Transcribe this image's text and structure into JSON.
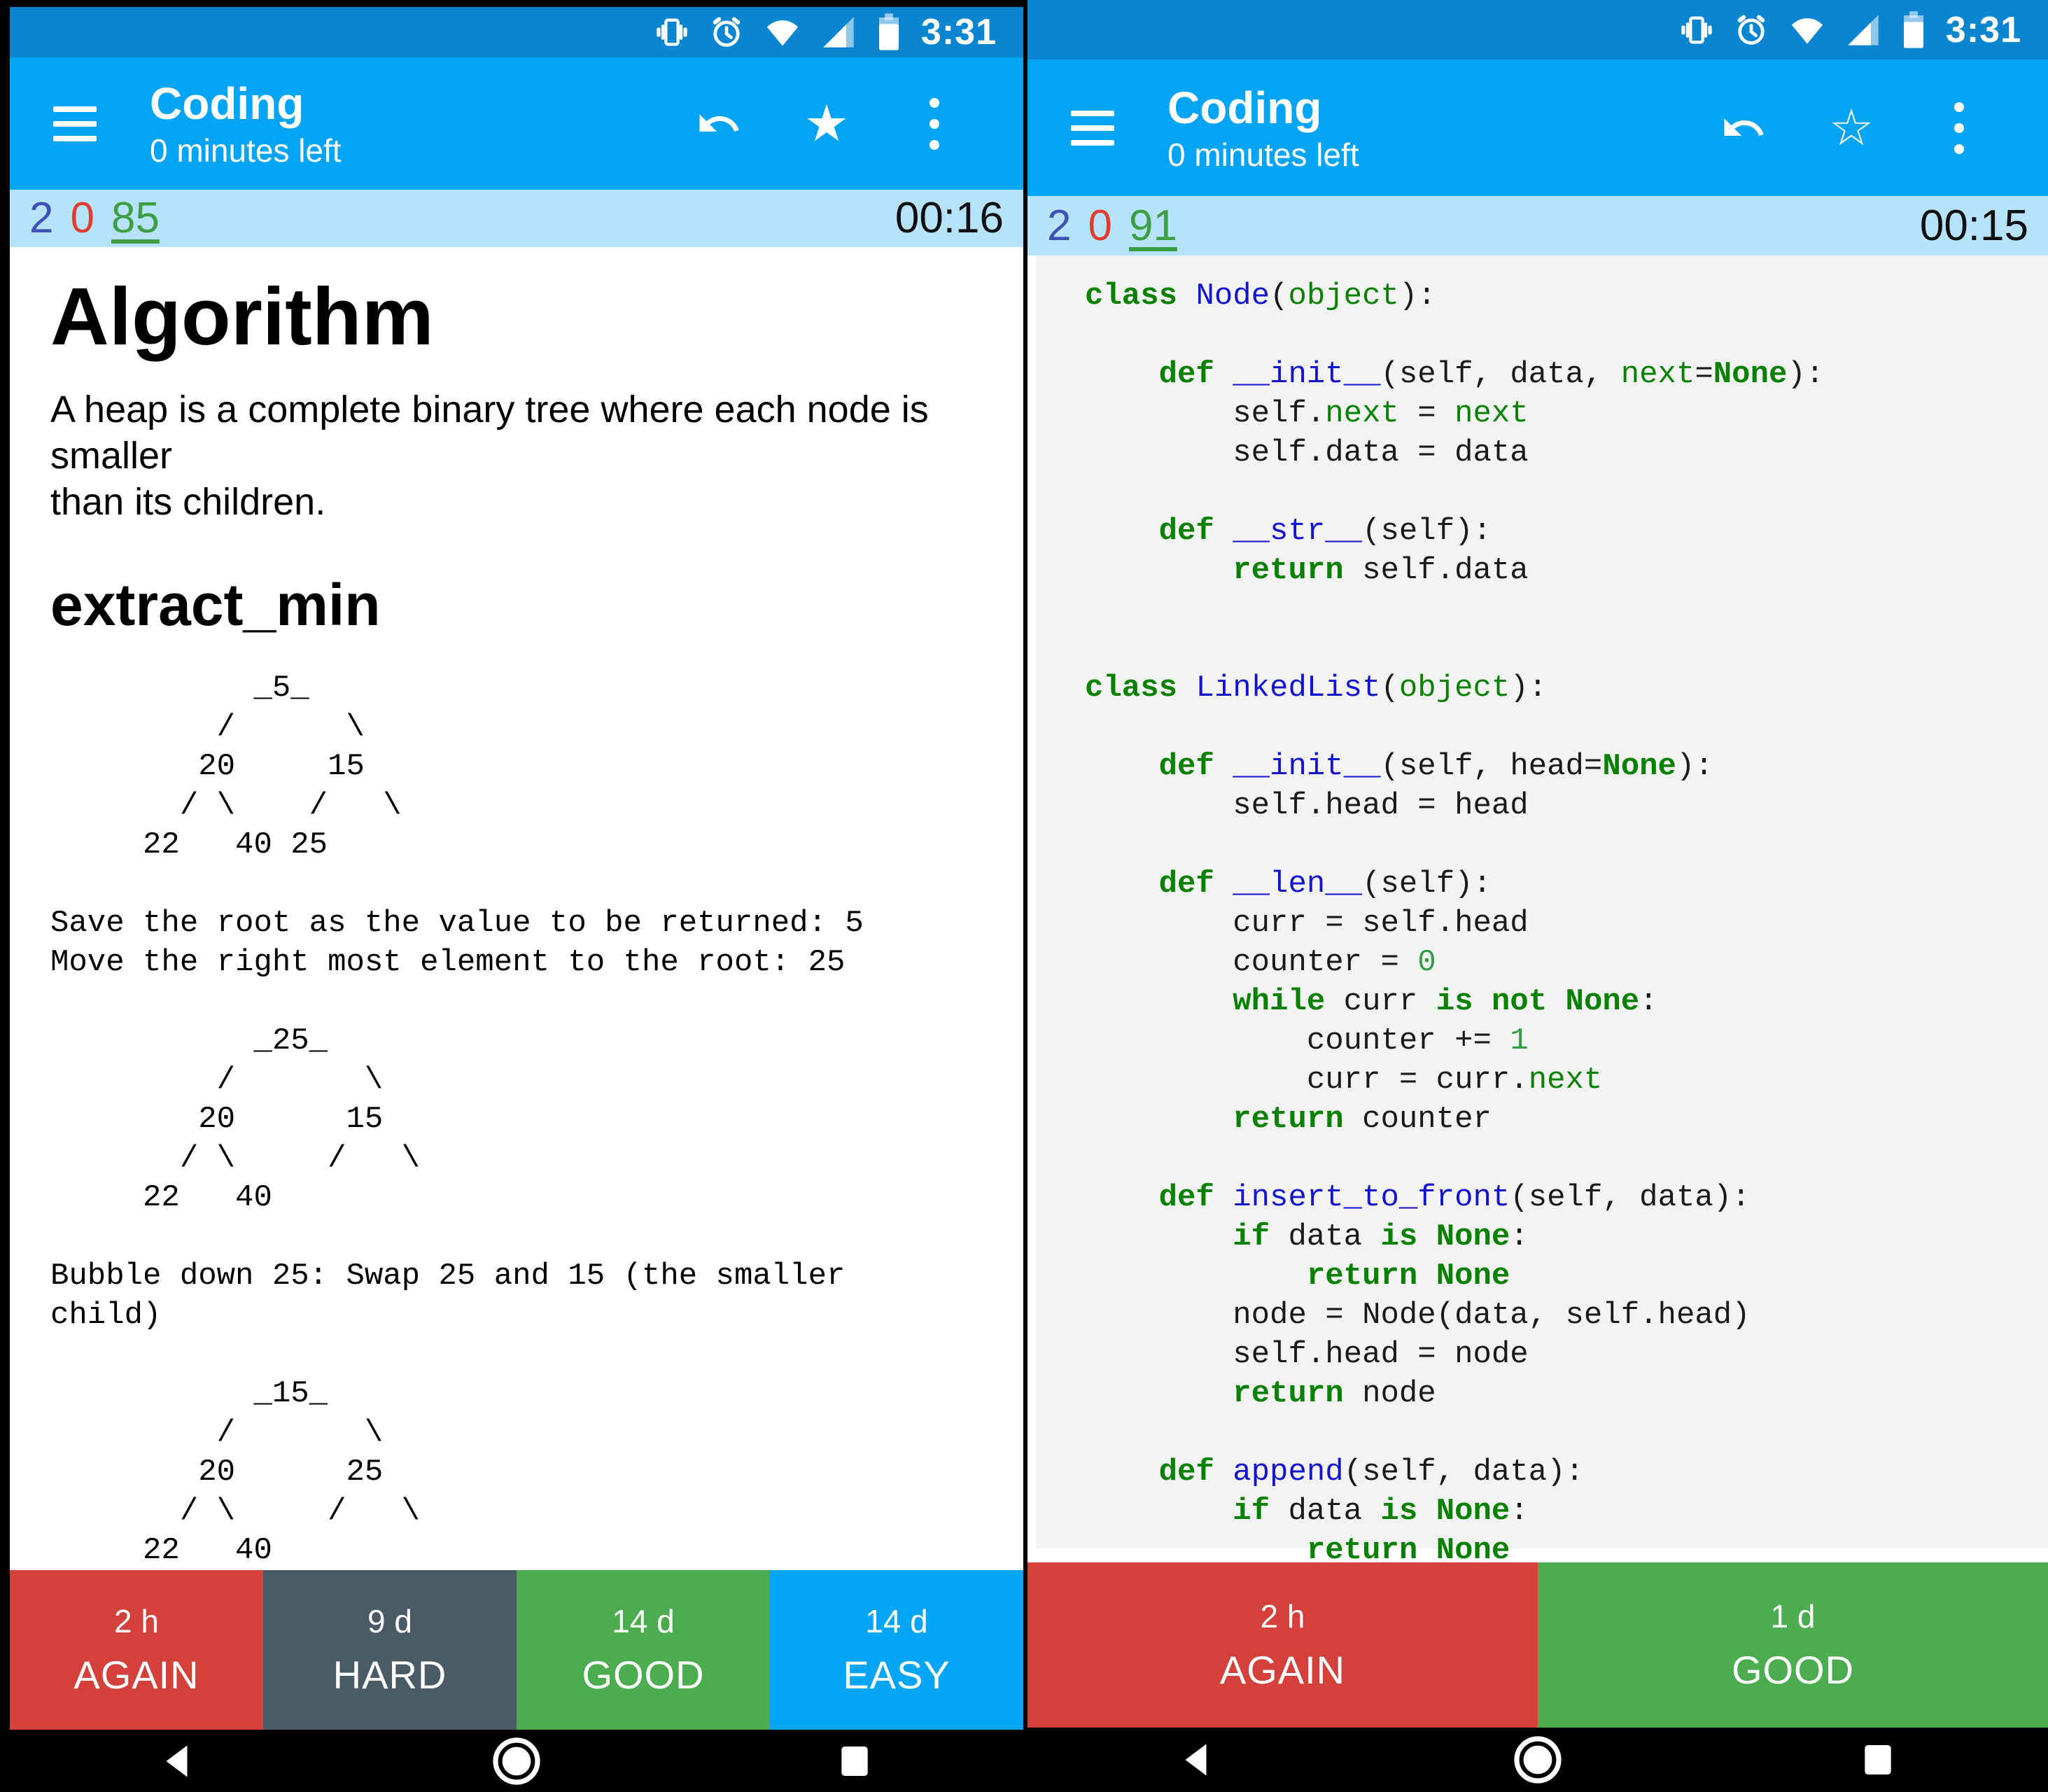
{
  "status_bar": {
    "time": "3:31",
    "icons": [
      "vibrate-icon",
      "alarm-icon",
      "wifi-icon",
      "signal-icon",
      "battery-icon"
    ]
  },
  "app_bar": {
    "title": "Coding",
    "subtitle": "0 minutes left",
    "star_filled": "★",
    "star_outline": "☆"
  },
  "left_phone": {
    "counter_bar": {
      "new_count": "2",
      "learning_count": "0",
      "review_count": "85",
      "timer": "00:16"
    },
    "card": {
      "heading": "Algorithm",
      "intro": "A heap is a complete binary tree where each node is smaller\nthan its children.",
      "subheading": "extract_min",
      "tree_initial": "           _5_\n         /      \\\n        20     15\n       / \\    /   \\\n     22   40 25",
      "step_1": "Save the root as the value to be returned: 5\nMove the right most element to the root: 25",
      "tree_after_move": "           _25_\n         /       \\\n        20      15\n       / \\     /   \\\n     22   40",
      "step_2": "Bubble down 25: Swap 25 and 15 (the smaller\nchild)",
      "tree_after_bubble": "           _15_\n         /       \\\n        20      25\n       / \\     /   \\\n     22   40"
    },
    "answer_buttons": [
      {
        "interval": "2 h",
        "label": "AGAIN",
        "color": "#d4403a"
      },
      {
        "interval": "9 d",
        "label": "HARD",
        "color": "#4b5b66"
      },
      {
        "interval": "14 d",
        "label": "GOOD",
        "color": "#4bad50"
      },
      {
        "interval": "14 d",
        "label": "EASY",
        "color": "#04a5f4"
      }
    ]
  },
  "right_phone": {
    "counter_bar": {
      "new_count": "2",
      "learning_count": "0",
      "review_count": "91",
      "timer": "00:15"
    },
    "answer_buttons": [
      {
        "interval": "2 h",
        "label": "AGAIN",
        "color": "#d4403a"
      },
      {
        "interval": "1 d",
        "label": "GOOD",
        "color": "#4bad50"
      }
    ],
    "code_lines": [
      [
        [
          "k",
          "class"
        ],
        [
          "p",
          " "
        ],
        [
          "n",
          "Node"
        ],
        [
          "p",
          "("
        ],
        [
          "b",
          "object"
        ],
        [
          "p",
          "):"
        ]
      ],
      [],
      [
        [
          "p",
          "    "
        ],
        [
          "k",
          "def"
        ],
        [
          "p",
          " "
        ],
        [
          "n",
          "__init__"
        ],
        [
          "p",
          "(self, data, "
        ],
        [
          "b",
          "next"
        ],
        [
          "p",
          "="
        ],
        [
          "k",
          "None"
        ],
        [
          "p",
          "):"
        ]
      ],
      [
        [
          "p",
          "        self."
        ],
        [
          "b",
          "next"
        ],
        [
          "p",
          " = "
        ],
        [
          "b",
          "next"
        ]
      ],
      [
        [
          "p",
          "        self.data = data"
        ]
      ],
      [],
      [
        [
          "p",
          "    "
        ],
        [
          "k",
          "def"
        ],
        [
          "p",
          " "
        ],
        [
          "n",
          "__str__"
        ],
        [
          "p",
          "(self):"
        ]
      ],
      [
        [
          "p",
          "        "
        ],
        [
          "k",
          "return"
        ],
        [
          "p",
          " self.data"
        ]
      ],
      [],
      [],
      [
        [
          "k",
          "class"
        ],
        [
          "p",
          " "
        ],
        [
          "n",
          "LinkedList"
        ],
        [
          "p",
          "("
        ],
        [
          "b",
          "object"
        ],
        [
          "p",
          "):"
        ]
      ],
      [],
      [
        [
          "p",
          "    "
        ],
        [
          "k",
          "def"
        ],
        [
          "p",
          " "
        ],
        [
          "n",
          "__init__"
        ],
        [
          "p",
          "(self, head="
        ],
        [
          "k",
          "None"
        ],
        [
          "p",
          "):"
        ]
      ],
      [
        [
          "p",
          "        self.head = head"
        ]
      ],
      [],
      [
        [
          "p",
          "    "
        ],
        [
          "k",
          "def"
        ],
        [
          "p",
          " "
        ],
        [
          "n",
          "__len__"
        ],
        [
          "p",
          "(self):"
        ]
      ],
      [
        [
          "p",
          "        curr = self.head"
        ]
      ],
      [
        [
          "p",
          "        counter = "
        ],
        [
          "m",
          "0"
        ]
      ],
      [
        [
          "p",
          "        "
        ],
        [
          "k",
          "while"
        ],
        [
          "p",
          " curr "
        ],
        [
          "k",
          "is"
        ],
        [
          "p",
          " "
        ],
        [
          "k",
          "not"
        ],
        [
          "p",
          " "
        ],
        [
          "k",
          "None"
        ],
        [
          "p",
          ":"
        ]
      ],
      [
        [
          "p",
          "            counter += "
        ],
        [
          "m",
          "1"
        ]
      ],
      [
        [
          "p",
          "            curr = curr."
        ],
        [
          "b",
          "next"
        ]
      ],
      [
        [
          "p",
          "        "
        ],
        [
          "k",
          "return"
        ],
        [
          "p",
          " counter"
        ]
      ],
      [],
      [
        [
          "p",
          "    "
        ],
        [
          "k",
          "def"
        ],
        [
          "p",
          " "
        ],
        [
          "n",
          "insert_to_front"
        ],
        [
          "p",
          "(self, data):"
        ]
      ],
      [
        [
          "p",
          "        "
        ],
        [
          "k",
          "if"
        ],
        [
          "p",
          " data "
        ],
        [
          "k",
          "is"
        ],
        [
          "p",
          " "
        ],
        [
          "k",
          "None"
        ],
        [
          "p",
          ":"
        ]
      ],
      [
        [
          "p",
          "            "
        ],
        [
          "k",
          "return"
        ],
        [
          "p",
          " "
        ],
        [
          "k",
          "None"
        ]
      ],
      [
        [
          "p",
          "        node = Node(data, self.head)"
        ]
      ],
      [
        [
          "p",
          "        self.head = node"
        ]
      ],
      [
        [
          "p",
          "        "
        ],
        [
          "k",
          "return"
        ],
        [
          "p",
          " node"
        ]
      ],
      [],
      [
        [
          "p",
          "    "
        ],
        [
          "k",
          "def"
        ],
        [
          "p",
          " "
        ],
        [
          "n",
          "append"
        ],
        [
          "p",
          "(self, data):"
        ]
      ],
      [
        [
          "p",
          "        "
        ],
        [
          "k",
          "if"
        ],
        [
          "p",
          " data "
        ],
        [
          "k",
          "is"
        ],
        [
          "p",
          " "
        ],
        [
          "k",
          "None"
        ],
        [
          "p",
          ":"
        ]
      ],
      [
        [
          "p",
          "            "
        ],
        [
          "k",
          "return"
        ],
        [
          "p",
          " "
        ],
        [
          "k",
          "None"
        ]
      ]
    ]
  },
  "colors": {
    "status_bar": "#0a86d0",
    "app_bar": "#03a4f3",
    "counter_bar": "#b6e3fb",
    "new": "#3f51b5",
    "learning": "#e03c31",
    "review": "#3e9e44",
    "code_background": "#f3f3f3",
    "keyword": "#088000",
    "name": "#1414cc",
    "number": "#2f9e44",
    "again": "#d4403a",
    "hard": "#4b5b66",
    "good": "#4bad50",
    "easy": "#04a5f4"
  }
}
